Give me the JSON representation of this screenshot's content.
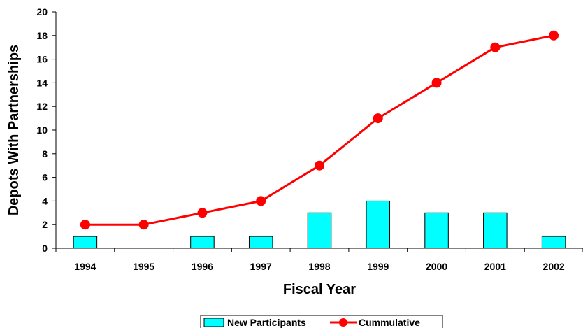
{
  "chart_data": {
    "type": "bar",
    "categories": [
      "1994",
      "1995",
      "1996",
      "1997",
      "1998",
      "1999",
      "2000",
      "2001",
      "2002"
    ],
    "series": [
      {
        "name": "New Participants",
        "type": "bar",
        "values": [
          1,
          0,
          1,
          1,
          3,
          4,
          3,
          3,
          1
        ],
        "color": "#00FFFF"
      },
      {
        "name": "Cummulative",
        "type": "line",
        "values": [
          2,
          2,
          3,
          4,
          7,
          11,
          14,
          17,
          18
        ],
        "color": "#FF0000"
      }
    ],
    "title": "",
    "xlabel": "Fiscal Year",
    "ylabel": "Depots With Partnerships",
    "ylim": [
      0,
      20
    ],
    "yticks": [
      0,
      2,
      4,
      6,
      8,
      10,
      12,
      14,
      16,
      18,
      20
    ],
    "grid": false,
    "legend": "bottom"
  }
}
